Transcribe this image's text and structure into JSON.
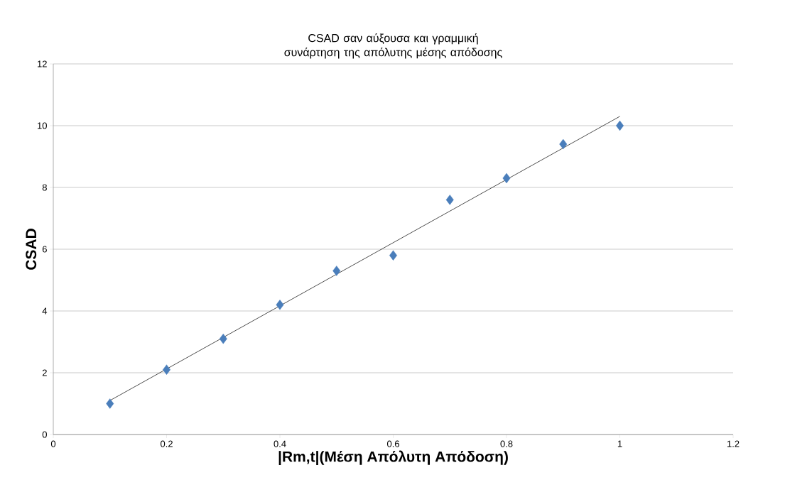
{
  "chart_data": {
    "type": "scatter",
    "title": "CSAD σαν αύξουσα και γραμμική συνάρτηση της απόλυτης μέσης απόδοσης",
    "xlabel": "|Rm,t|(Μέση Απόλυτη Απόδοση)",
    "ylabel": "CSAD",
    "series": [
      {
        "color": "#4a7ebb",
        "marker": "diamond",
        "x": [
          0.1,
          0.2,
          0.3,
          0.4,
          0.5,
          0.6,
          0.7,
          0.8,
          0.9,
          1.0
        ],
        "values": [
          1.0,
          2.1,
          3.1,
          4.2,
          5.3,
          5.8,
          7.6,
          8.3,
          9.4,
          10.0
        ]
      },
      {
        "type": "line",
        "color": "#000000",
        "x": [
          0.1,
          1.0
        ],
        "values": [
          1.1,
          10.3
        ]
      }
    ],
    "xlim": [
      0,
      1.2
    ],
    "xticks": [
      0,
      0.2,
      0.4,
      0.6,
      0.8,
      1,
      1.2
    ],
    "ylim": [
      0,
      12
    ],
    "yticks": [
      0,
      2,
      4,
      6,
      8,
      10,
      12
    ],
    "grid": "y"
  }
}
